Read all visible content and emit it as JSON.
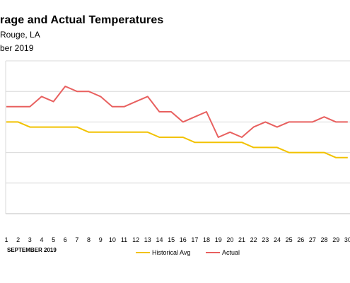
{
  "chart_data": {
    "type": "line",
    "title": "rage and Actual Temperatures",
    "subtitle_line1": "Rouge, LA",
    "subtitle_line2": "ber 2019",
    "xlabel": "SEPTEMBER 2019",
    "ylabel": "",
    "x": [
      "1",
      "2",
      "3",
      "4",
      "5",
      "6",
      "7",
      "8",
      "9",
      "10",
      "11",
      "12",
      "13",
      "14",
      "15",
      "16",
      "17",
      "18",
      "19",
      "20",
      "21",
      "22",
      "23",
      "24",
      "25",
      "26",
      "27",
      "28",
      "29",
      "30"
    ],
    "ylim": [
      72,
      102
    ],
    "grid": true,
    "legend_position": "bottom",
    "series": [
      {
        "name": "Historical Avg",
        "color": "#f2c200",
        "values": [
          90,
          90,
          89,
          89,
          89,
          89,
          89,
          88,
          88,
          88,
          88,
          88,
          88,
          87,
          87,
          87,
          86,
          86,
          86,
          86,
          86,
          85,
          85,
          85,
          84,
          84,
          84,
          84,
          83,
          83
        ]
      },
      {
        "name": "Actual",
        "color": "#e8605f",
        "values": [
          93,
          93,
          93,
          95,
          94,
          97,
          96,
          96,
          95,
          93,
          93,
          94,
          95,
          92,
          92,
          90,
          91,
          92,
          87,
          88,
          87,
          89,
          90,
          89,
          90,
          90,
          90,
          91,
          90,
          90
        ]
      }
    ]
  }
}
